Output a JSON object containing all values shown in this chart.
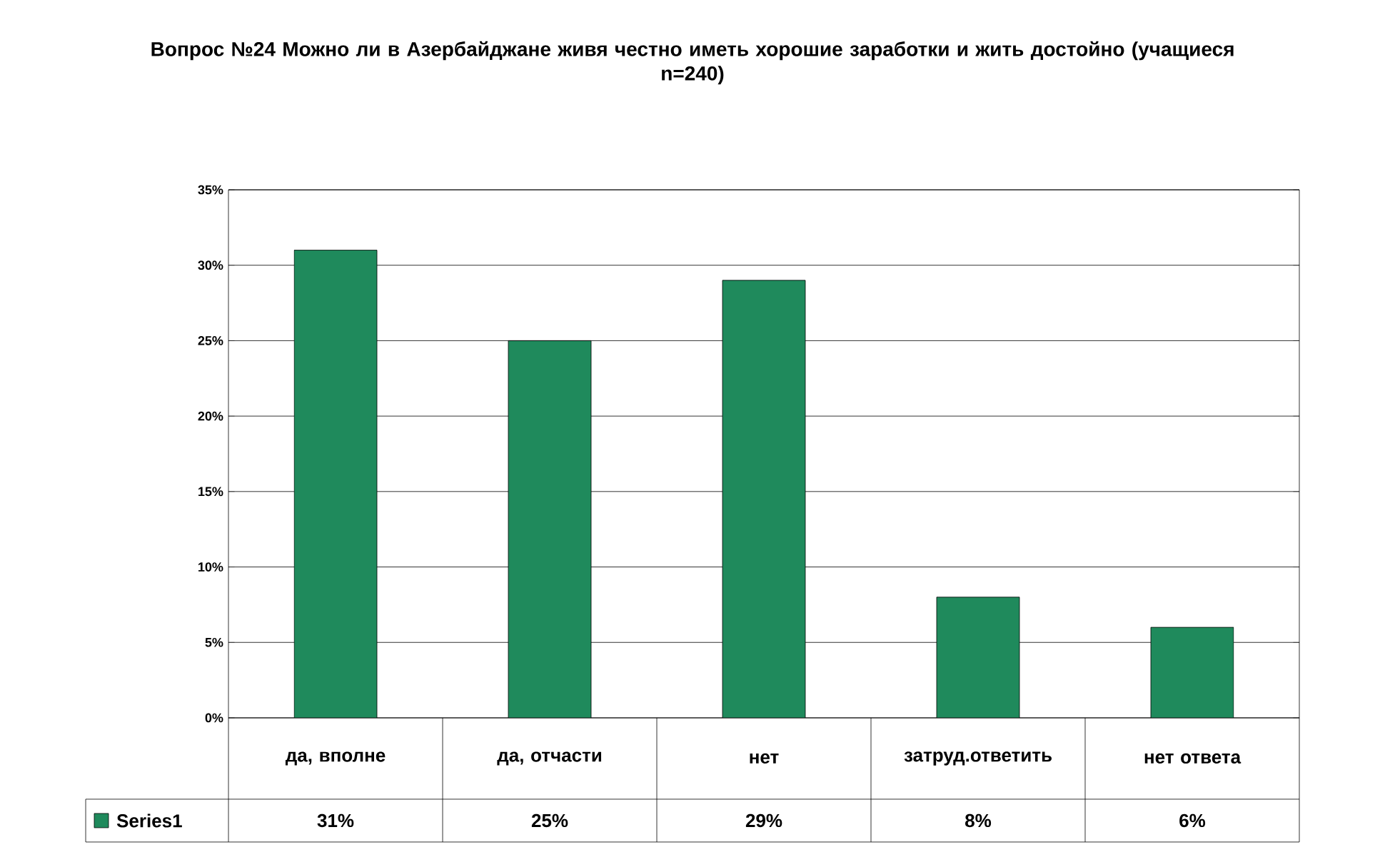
{
  "chart_data": {
    "type": "bar",
    "title": "Вопрос №24 Можно ли в Азербайджане живя честно иметь хорошие заработки и жить достойно (учащиеся n=240)",
    "categories": [
      "да, вполне",
      "да, отчасти",
      "нет",
      "затруд.ответить",
      "нет ответа"
    ],
    "series": [
      {
        "name": "Series1",
        "color": "#1f8a5c",
        "values": [
          31,
          25,
          29,
          8,
          6
        ],
        "value_labels": [
          "31%",
          "25%",
          "29%",
          "8%",
          "6%"
        ]
      }
    ],
    "ylim": [
      0,
      35
    ],
    "yticks": [
      {
        "value": 0,
        "label": "0%"
      },
      {
        "value": 5,
        "label": "5%"
      },
      {
        "value": 10,
        "label": "10%"
      },
      {
        "value": 15,
        "label": "15%"
      },
      {
        "value": 20,
        "label": "20%"
      },
      {
        "value": 25,
        "label": "25%"
      },
      {
        "value": 30,
        "label": "30%"
      },
      {
        "value": 35,
        "label": "35%"
      }
    ],
    "grid": "y",
    "legend": "bottom"
  }
}
